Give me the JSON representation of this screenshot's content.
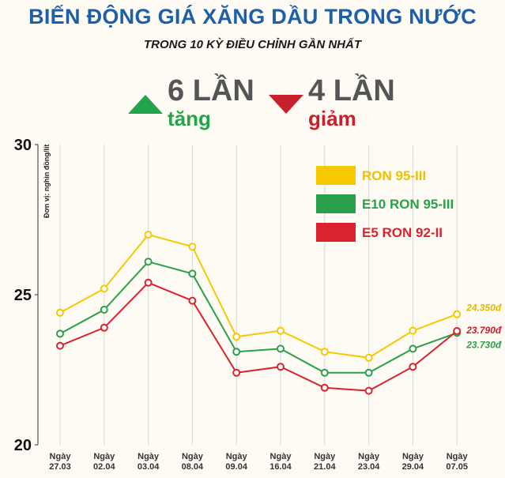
{
  "header": {
    "title": "BIẾN ĐỘNG GIÁ XĂNG DẦU TRONG NƯỚC",
    "subtitle": "TRONG 10 KỲ ĐIỀU CHỈNH GẦN NHẤT"
  },
  "summary": {
    "increase_count": "6 LẦN",
    "increase_label": "tăng",
    "decrease_count": "4 LẦN",
    "decrease_label": "giảm"
  },
  "colors": {
    "title": "#1d5fa8",
    "increase": "#22a54a",
    "decrease": "#c8202c",
    "ron95": "#f5c800",
    "e10": "#2aa04a",
    "e5": "#d9232e",
    "grid": "#d8d8d8"
  },
  "chart_data": {
    "type": "line",
    "ylabel": "Đơn vị: nghìn đồng/lít",
    "ylim": [
      20,
      30
    ],
    "yticks": [
      "20",
      "25",
      "30"
    ],
    "categories": [
      [
        "Ngày",
        "27.03"
      ],
      [
        "Ngày",
        "02.04"
      ],
      [
        "Ngày",
        "03.04"
      ],
      [
        "Ngày",
        "08.04"
      ],
      [
        "Ngày",
        "09.04"
      ],
      [
        "Ngày",
        "16.04"
      ],
      [
        "Ngày",
        "21.04"
      ],
      [
        "Ngày",
        "23.04"
      ],
      [
        "Ngày",
        "29.04"
      ],
      [
        "Ngày",
        "07.05"
      ]
    ],
    "grid": true,
    "legend_position": "top-right",
    "series": [
      {
        "name": "RON 95-III",
        "color": "#f5c800",
        "label_color": "#e8b800",
        "values": [
          24.4,
          25.2,
          27.0,
          26.6,
          23.6,
          23.8,
          23.1,
          22.9,
          23.8,
          24.35
        ],
        "end_label": "24.350đ"
      },
      {
        "name": "E10 RON 95-III",
        "color": "#2aa04a",
        "label_color": "#2aa04a",
        "values": [
          23.7,
          24.5,
          26.1,
          25.7,
          23.1,
          23.2,
          22.4,
          22.4,
          23.2,
          23.73
        ],
        "end_label": "23.730đ"
      },
      {
        "name": "E5 RON 92-II",
        "color": "#d9232e",
        "label_color": "#c8202c",
        "values": [
          23.3,
          23.9,
          25.4,
          24.8,
          22.4,
          22.6,
          21.9,
          21.8,
          22.6,
          23.79
        ],
        "end_label": "23.790đ"
      }
    ]
  }
}
